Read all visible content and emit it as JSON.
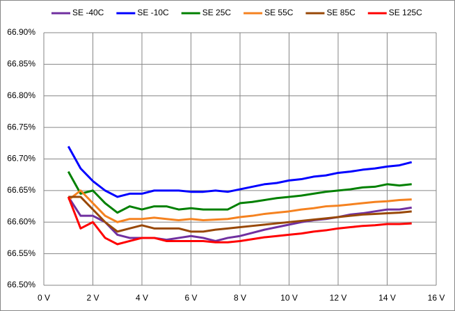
{
  "chart_data": {
    "type": "line",
    "x": [
      1,
      1.5,
      2,
      2.5,
      3,
      3.5,
      4,
      4.5,
      5,
      5.5,
      6,
      6.5,
      7,
      7.5,
      8,
      8.5,
      9,
      9.5,
      10,
      10.5,
      11,
      11.5,
      12,
      12.5,
      13,
      13.5,
      14,
      14.5,
      15
    ],
    "series": [
      {
        "name": "SE -40C",
        "color": "#7030a0",
        "values": [
          66.64,
          66.61,
          66.61,
          66.6,
          66.58,
          66.575,
          66.575,
          66.575,
          66.572,
          66.575,
          66.578,
          66.575,
          66.57,
          66.575,
          66.578,
          66.583,
          66.588,
          66.592,
          66.596,
          66.6,
          66.603,
          66.605,
          66.608,
          66.612,
          66.614,
          66.617,
          66.62,
          66.62,
          66.623
        ]
      },
      {
        "name": "SE -10C",
        "color": "#0000ff",
        "values": [
          66.72,
          66.685,
          66.665,
          66.65,
          66.64,
          66.645,
          66.645,
          66.65,
          66.65,
          66.65,
          66.648,
          66.648,
          66.65,
          66.648,
          66.652,
          66.656,
          66.66,
          66.662,
          66.666,
          66.668,
          66.672,
          66.674,
          66.678,
          66.68,
          66.683,
          66.685,
          66.688,
          66.69,
          66.695
        ]
      },
      {
        "name": "SE 25C",
        "color": "#008000",
        "values": [
          66.68,
          66.645,
          66.65,
          66.63,
          66.615,
          66.625,
          66.62,
          66.625,
          66.625,
          66.62,
          66.622,
          66.62,
          66.62,
          66.62,
          66.63,
          66.632,
          66.635,
          66.638,
          66.64,
          66.642,
          66.645,
          66.648,
          66.65,
          66.652,
          66.655,
          66.656,
          66.66,
          66.658,
          66.66
        ]
      },
      {
        "name": "SE 55C",
        "color": "#f58220",
        "values": [
          66.635,
          66.65,
          66.63,
          66.61,
          66.6,
          66.605,
          66.605,
          66.607,
          66.605,
          66.603,
          66.605,
          66.603,
          66.604,
          66.605,
          66.608,
          66.61,
          66.613,
          66.615,
          66.617,
          66.62,
          66.622,
          66.625,
          66.626,
          66.628,
          66.63,
          66.632,
          66.633,
          66.635,
          66.636
        ]
      },
      {
        "name": "SE 85C",
        "color": "#984807",
        "values": [
          66.64,
          66.64,
          66.62,
          66.6,
          66.585,
          66.59,
          66.595,
          66.59,
          66.59,
          66.59,
          66.585,
          66.585,
          66.588,
          66.59,
          66.592,
          66.594,
          66.596,
          66.598,
          66.6,
          66.602,
          66.604,
          66.606,
          66.608,
          66.61,
          66.612,
          66.613,
          66.614,
          66.615,
          66.617
        ]
      },
      {
        "name": "SE 125C",
        "color": "#ff0000",
        "values": [
          66.64,
          66.59,
          66.6,
          66.575,
          66.565,
          66.57,
          66.575,
          66.575,
          66.57,
          66.57,
          66.57,
          66.57,
          66.568,
          66.568,
          66.57,
          66.573,
          66.576,
          66.578,
          66.58,
          66.582,
          66.585,
          66.587,
          66.59,
          66.592,
          66.594,
          66.595,
          66.597,
          66.597,
          66.598
        ]
      }
    ],
    "xlim": [
      0,
      16
    ],
    "xticks": [
      {
        "value": 0,
        "label": "0 V"
      },
      {
        "value": 2,
        "label": "2 V"
      },
      {
        "value": 4,
        "label": "4 V"
      },
      {
        "value": 6,
        "label": "6 V"
      },
      {
        "value": 8,
        "label": "8 V"
      },
      {
        "value": 10,
        "label": "10 V"
      },
      {
        "value": 12,
        "label": "12 V"
      },
      {
        "value": 14,
        "label": "14 V"
      },
      {
        "value": 16,
        "label": "16 V"
      }
    ],
    "ylim": [
      66.5,
      66.9
    ],
    "yticks": [
      {
        "value": 66.5,
        "label": "66.50%"
      },
      {
        "value": 66.55,
        "label": "66.55%"
      },
      {
        "value": 66.6,
        "label": "66.60%"
      },
      {
        "value": 66.65,
        "label": "66.65%"
      },
      {
        "value": 66.7,
        "label": "66.70%"
      },
      {
        "value": 66.75,
        "label": "66.75%"
      },
      {
        "value": 66.8,
        "label": "66.80%"
      },
      {
        "value": 66.85,
        "label": "66.85%"
      },
      {
        "value": 66.9,
        "label": "66.90%"
      }
    ],
    "grid": true,
    "legend": "top"
  }
}
